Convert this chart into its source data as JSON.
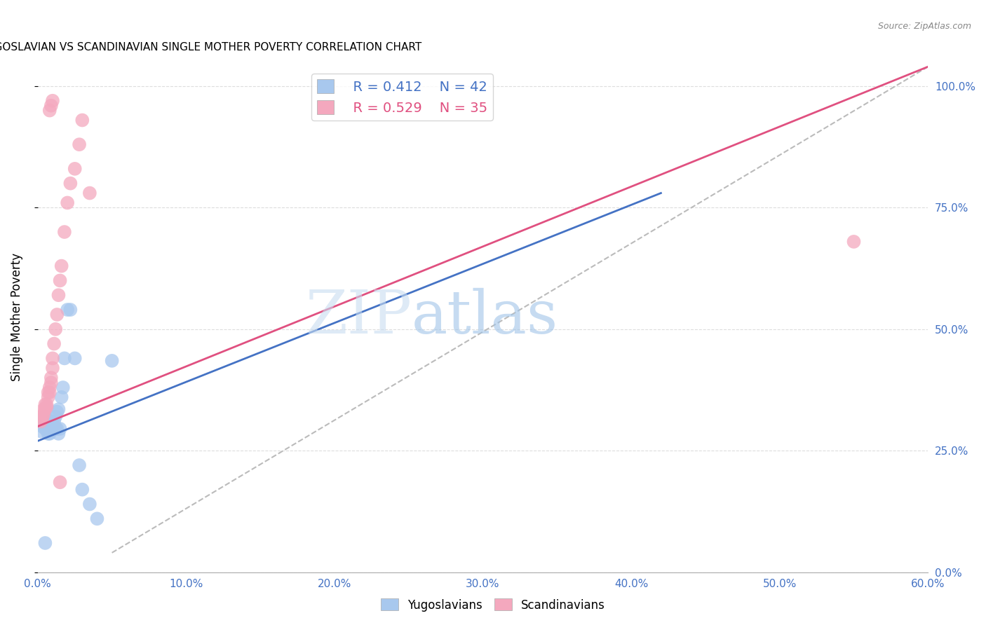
{
  "title": "YUGOSLAVIAN VS SCANDINAVIAN SINGLE MOTHER POVERTY CORRELATION CHART",
  "source": "Source: ZipAtlas.com",
  "xlim": [
    0.0,
    0.6
  ],
  "ylim": [
    0.0,
    1.05
  ],
  "watermark_zip": "ZIP",
  "watermark_atlas": "atlas",
  "legend_blue_r": "R = 0.412",
  "legend_blue_n": "N = 42",
  "legend_pink_r": "R = 0.529",
  "legend_pink_n": "N = 35",
  "blue_color": "#A8C8EE",
  "pink_color": "#F4A8BE",
  "blue_line_color": "#4472C4",
  "pink_line_color": "#E05080",
  "dash_line_color": "#BBBBBB",
  "grid_color": "#DDDDDD",
  "ylabel": "Single Mother Poverty",
  "legend_label_yug": "Yugoslavians",
  "legend_label_scan": "Scandinavians",
  "yugoslavian_x": [
    0.002,
    0.003,
    0.004,
    0.004,
    0.005,
    0.005,
    0.005,
    0.006,
    0.006,
    0.006,
    0.007,
    0.007,
    0.007,
    0.008,
    0.008,
    0.008,
    0.009,
    0.009,
    0.01,
    0.01,
    0.01,
    0.011,
    0.011,
    0.012,
    0.012,
    0.013,
    0.013,
    0.014,
    0.014,
    0.015,
    0.016,
    0.017,
    0.018,
    0.02,
    0.022,
    0.025,
    0.028,
    0.03,
    0.035,
    0.04,
    0.05,
    0.005
  ],
  "yugoslavian_y": [
    0.29,
    0.3,
    0.31,
    0.305,
    0.32,
    0.31,
    0.295,
    0.3,
    0.305,
    0.295,
    0.305,
    0.295,
    0.285,
    0.295,
    0.285,
    0.31,
    0.31,
    0.3,
    0.305,
    0.3,
    0.295,
    0.31,
    0.295,
    0.32,
    0.295,
    0.33,
    0.295,
    0.335,
    0.285,
    0.295,
    0.36,
    0.38,
    0.44,
    0.54,
    0.54,
    0.44,
    0.22,
    0.17,
    0.14,
    0.11,
    0.435,
    0.06
  ],
  "scandinavian_x": [
    0.002,
    0.003,
    0.003,
    0.004,
    0.004,
    0.005,
    0.005,
    0.006,
    0.006,
    0.007,
    0.007,
    0.008,
    0.008,
    0.009,
    0.009,
    0.01,
    0.01,
    0.011,
    0.012,
    0.013,
    0.014,
    0.015,
    0.016,
    0.018,
    0.02,
    0.022,
    0.025,
    0.028,
    0.03,
    0.035,
    0.008,
    0.009,
    0.01,
    0.55,
    0.015
  ],
  "scandinavian_y": [
    0.31,
    0.32,
    0.315,
    0.335,
    0.325,
    0.335,
    0.345,
    0.34,
    0.345,
    0.36,
    0.37,
    0.38,
    0.37,
    0.39,
    0.4,
    0.42,
    0.44,
    0.47,
    0.5,
    0.53,
    0.57,
    0.6,
    0.63,
    0.7,
    0.76,
    0.8,
    0.83,
    0.88,
    0.93,
    0.78,
    0.95,
    0.96,
    0.97,
    0.68,
    0.185
  ],
  "blue_line_x0": 0.0,
  "blue_line_y0": 0.27,
  "blue_line_x1": 0.42,
  "blue_line_y1": 0.78,
  "pink_line_x0": 0.0,
  "pink_line_y0": 0.3,
  "pink_line_x1": 0.6,
  "pink_line_y1": 1.04,
  "dash_line_x0": 0.05,
  "dash_line_y0": 0.04,
  "dash_line_x1": 0.6,
  "dash_line_y1": 1.04
}
